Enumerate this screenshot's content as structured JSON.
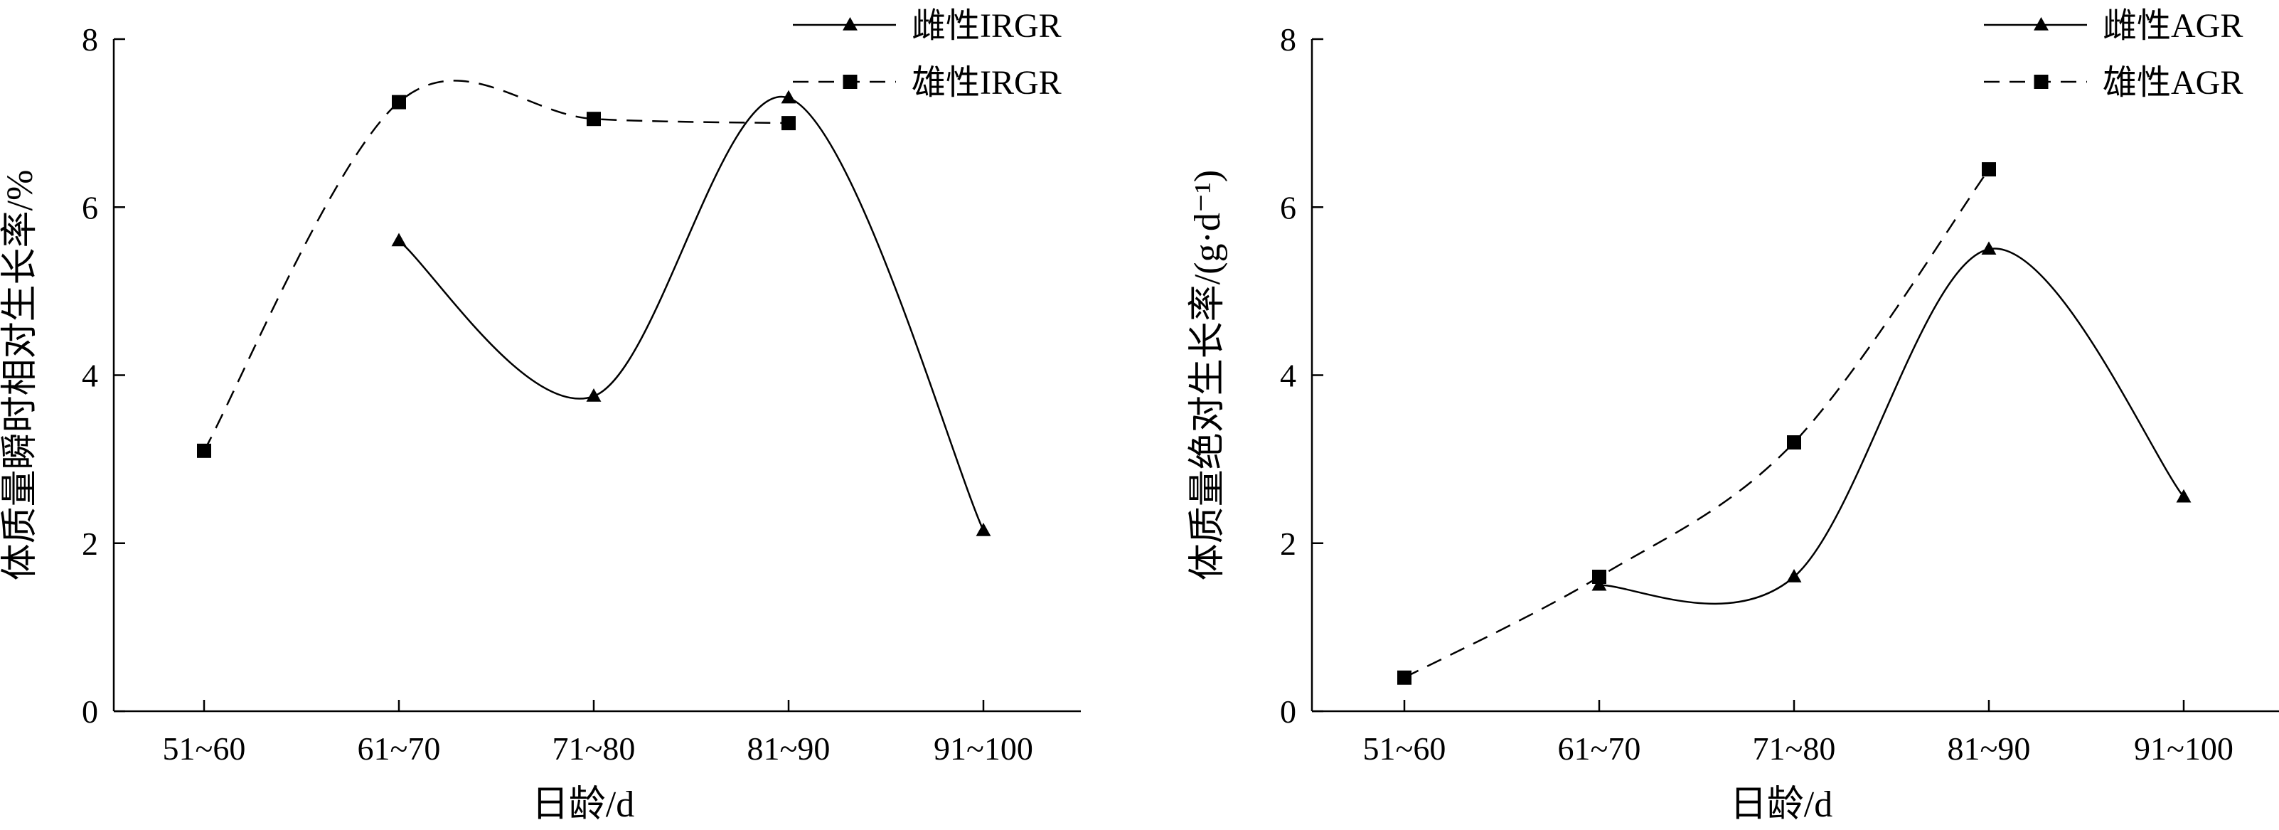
{
  "chart_data": [
    {
      "type": "line",
      "categories": [
        "51~60",
        "61~70",
        "71~80",
        "81~90",
        "91~100"
      ],
      "xlabel": "日龄/d",
      "ylabel": "体质量瞬时相对生长率/%",
      "ylim": [
        0,
        8
      ],
      "yticks": [
        "0",
        "2",
        "4",
        "6",
        "8"
      ],
      "legend_position": "top-right",
      "series": [
        {
          "name": "雌性IRGR",
          "style": "solid",
          "marker": "triangle",
          "values": [
            null,
            5.6,
            3.75,
            7.3,
            2.15
          ]
        },
        {
          "name": "雄性IRGR",
          "style": "dashed",
          "marker": "square",
          "values": [
            3.1,
            7.25,
            7.05,
            7.0,
            null
          ]
        }
      ]
    },
    {
      "type": "line",
      "categories": [
        "51~60",
        "61~70",
        "71~80",
        "81~90",
        "91~100"
      ],
      "xlabel": "日龄/d",
      "ylabel": "体质量绝对生长率/(g·d⁻¹)",
      "ylim": [
        0,
        8
      ],
      "yticks": [
        "0",
        "2",
        "4",
        "6",
        "8"
      ],
      "legend_position": "top-right",
      "series": [
        {
          "name": "雌性AGR",
          "style": "solid",
          "marker": "triangle",
          "values": [
            null,
            1.5,
            1.6,
            5.5,
            2.55
          ]
        },
        {
          "name": "雄性AGR",
          "style": "dashed",
          "marker": "square",
          "values": [
            0.4,
            1.6,
            3.2,
            6.45,
            null
          ]
        }
      ]
    }
  ]
}
